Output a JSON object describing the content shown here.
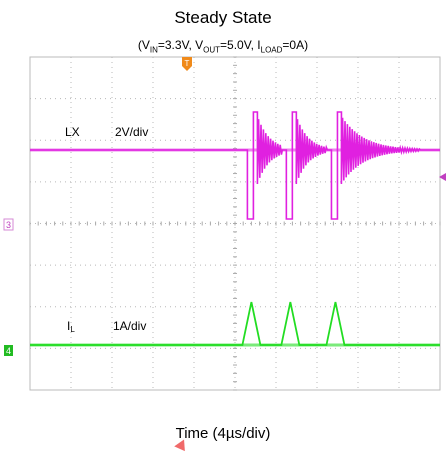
{
  "chart_data": {
    "type": "line",
    "title": "Steady State",
    "subtitle": {
      "p1": "(V",
      "s1": "IN",
      "p2": "=3.3V, V",
      "s2": "OUT",
      "p3": "=5.0V, I",
      "s3": "LOAD",
      "p4": "=0A)"
    },
    "xlabel": "Time (4µs/div)",
    "grid": true,
    "divisions": {
      "x": 10,
      "y": 8
    },
    "series": [
      {
        "name": "LX",
        "scale": "2V/div",
        "marker": "3",
        "color": "#e020e0",
        "bursts_x": [
          5.4,
          6.35,
          7.45
        ]
      },
      {
        "name": "I",
        "name_sub": "L",
        "scale": "1A/div",
        "marker": "4",
        "color": "#22dd22",
        "pulses_x": [
          5.4,
          6.35,
          7.45
        ]
      }
    ],
    "trigger_marker": "T"
  }
}
